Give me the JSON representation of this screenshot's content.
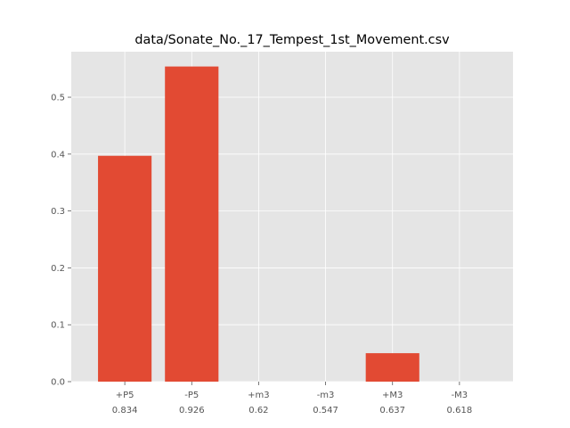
{
  "chart_data": {
    "type": "bar",
    "title": "data/Sonate_No._17_Tempest_1st_Movement.csv",
    "xlabel": "",
    "ylabel": "",
    "categories": [
      "+P5",
      "-P5",
      "+m3",
      "-m3",
      "+M3",
      "-M3"
    ],
    "category_sublabels": [
      "0.834",
      "0.926",
      "0.62",
      "0.547",
      "0.637",
      "0.618"
    ],
    "values": [
      0.397,
      0.554,
      0,
      0,
      0.05,
      0
    ],
    "ylim": [
      0,
      0.58
    ],
    "yticks": [
      0.0,
      0.1,
      0.2,
      0.3,
      0.4,
      0.5
    ],
    "ytick_labels": [
      "0.0",
      "0.1",
      "0.2",
      "0.3",
      "0.4",
      "0.5"
    ],
    "grid": true,
    "bar_color": "#E24A33",
    "background_color": "#E5E5E5",
    "grid_color": "#FFFFFF",
    "text_color": "#555555"
  }
}
